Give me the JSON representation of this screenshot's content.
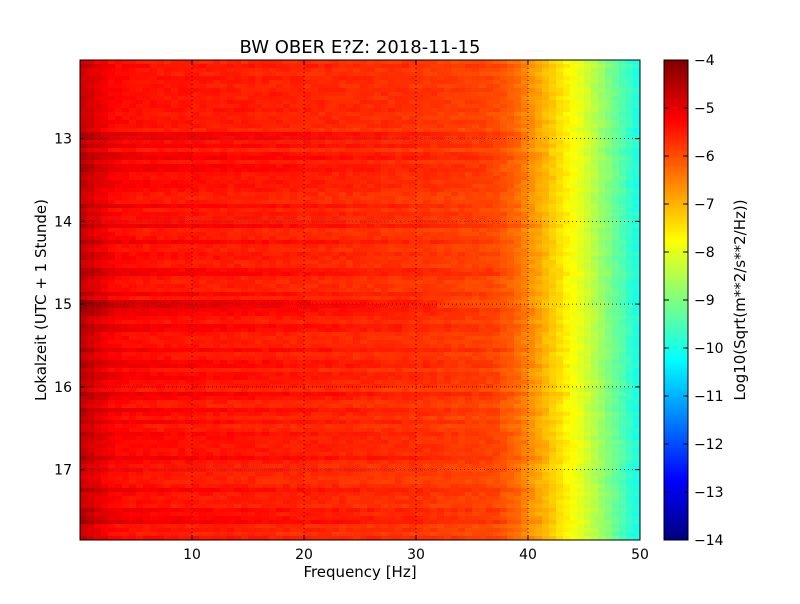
{
  "chart_data": {
    "type": "heatmap",
    "title": "BW OBER E?Z: 2018-11-15",
    "xlabel": "Frequency [Hz]",
    "ylabel": "Lokalzeit (UTC + 1 Stunde)",
    "colorbar_label": "Log10(Sqrt(m**2/s**2/Hz))",
    "xlim": [
      0,
      50
    ],
    "ylim": [
      17.85,
      12.05
    ],
    "y_axis_inverted": true,
    "x_ticks": [
      10,
      20,
      30,
      40,
      50
    ],
    "y_ticks": [
      13,
      14,
      15,
      16,
      17
    ],
    "colorbar_range": [
      -14,
      -4
    ],
    "colorbar_ticks": [
      -4,
      -5,
      -6,
      -7,
      -8,
      -9,
      -10,
      -11,
      -12,
      -13,
      -14
    ],
    "colormap": "jet",
    "grid": "dotted",
    "spectral_profile": {
      "frequency_hz": [
        0,
        1,
        2,
        3,
        5,
        8,
        12,
        20,
        30,
        37,
        39,
        40,
        41,
        42,
        43,
        44,
        45,
        46,
        47,
        48,
        49,
        50
      ],
      "log10_amplitude": [
        -4.7,
        -4.9,
        -5.1,
        -5.3,
        -5.4,
        -5.45,
        -5.5,
        -5.6,
        -5.75,
        -5.95,
        -6.3,
        -6.6,
        -6.9,
        -7.2,
        -7.5,
        -7.8,
        -8.1,
        -8.5,
        -8.9,
        -9.3,
        -9.7,
        -10.1
      ]
    },
    "horizontal_bands": [
      {
        "time": 12.97,
        "delta": 0.35,
        "fmax": 40
      },
      {
        "time": 13.1,
        "delta": 0.25,
        "fmax": 38
      },
      {
        "time": 13.22,
        "delta": 0.3,
        "fmax": 42
      },
      {
        "time": 13.35,
        "delta": 0.3,
        "fmax": 36
      },
      {
        "time": 13.55,
        "delta": 0.2,
        "fmax": 40
      },
      {
        "time": 13.82,
        "delta": 0.3,
        "fmax": 40
      },
      {
        "time": 14.05,
        "delta": 0.25,
        "fmax": 42
      },
      {
        "time": 14.25,
        "delta": 0.3,
        "fmax": 40
      },
      {
        "time": 14.45,
        "delta": 0.2,
        "fmax": 42
      },
      {
        "time": 14.6,
        "delta": 0.25,
        "fmax": 38
      },
      {
        "time": 14.88,
        "delta": 0.3,
        "fmax": 44
      },
      {
        "time": 15.0,
        "delta": 0.6,
        "fmax": 32
      },
      {
        "time": 15.1,
        "delta": 0.35,
        "fmax": 42
      },
      {
        "time": 15.3,
        "delta": 0.25,
        "fmax": 42
      },
      {
        "time": 15.55,
        "delta": 0.2,
        "fmax": 40
      },
      {
        "time": 15.72,
        "delta": 0.3,
        "fmax": 42
      },
      {
        "time": 15.88,
        "delta": 0.25,
        "fmax": 40
      },
      {
        "time": 16.1,
        "delta": 0.3,
        "fmax": 44
      },
      {
        "time": 16.28,
        "delta": 0.4,
        "fmax": 42
      },
      {
        "time": 16.42,
        "delta": 0.2,
        "fmax": 40
      },
      {
        "time": 16.6,
        "delta": 0.2,
        "fmax": 40
      },
      {
        "time": 16.85,
        "delta": 0.25,
        "fmax": 42
      },
      {
        "time": 17.0,
        "delta": 0.2,
        "fmax": 40
      },
      {
        "time": 17.25,
        "delta": 0.35,
        "fmax": 44
      },
      {
        "time": 17.5,
        "delta": 0.2,
        "fmax": 40
      },
      {
        "time": 17.62,
        "delta": 0.3,
        "fmax": 42
      }
    ]
  }
}
